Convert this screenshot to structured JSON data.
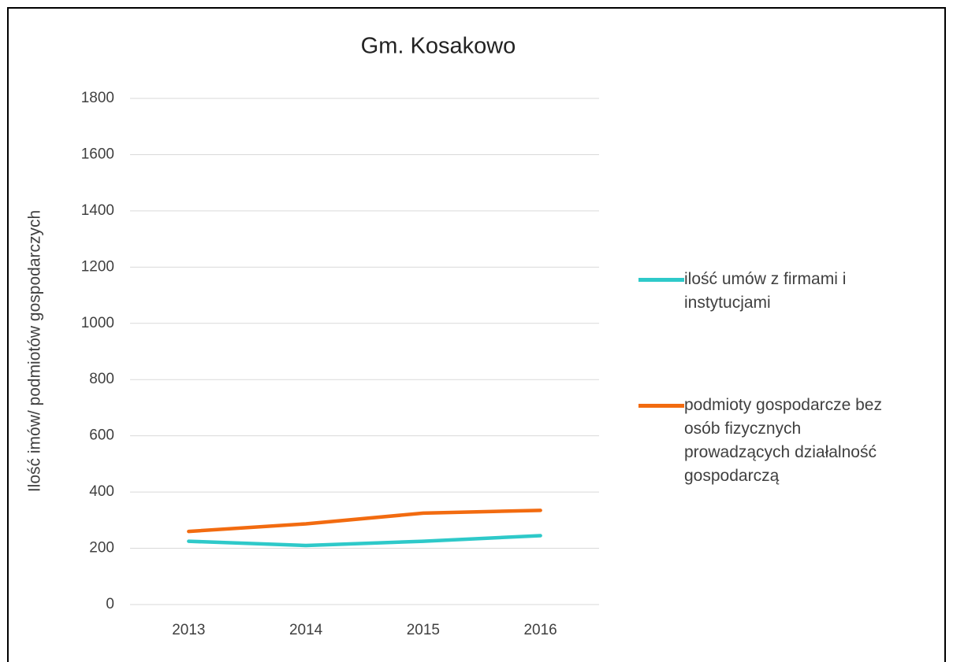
{
  "chart_data": {
    "type": "line",
    "title": "Gm. Kosakowo",
    "y_label": "Ilość imów/ podmiotów gospodarczych",
    "categories": [
      "2013",
      "2014",
      "2015",
      "2016"
    ],
    "series": [
      {
        "name": "ilość umów z firmami i instytucjami",
        "color": "#2ec9c9",
        "values": [
          225,
          210,
          225,
          245
        ]
      },
      {
        "name": "podmioty gospodarcze bez osób fizycznych prowadzących działalność gospodarczą",
        "color": "#f26b10",
        "values": [
          260,
          287,
          325,
          335
        ]
      }
    ],
    "ylim": [
      0,
      1800
    ],
    "yticks": [
      0,
      200,
      400,
      600,
      800,
      1000,
      1200,
      1400,
      1600,
      1800
    ],
    "grid": true,
    "legend": "right"
  }
}
